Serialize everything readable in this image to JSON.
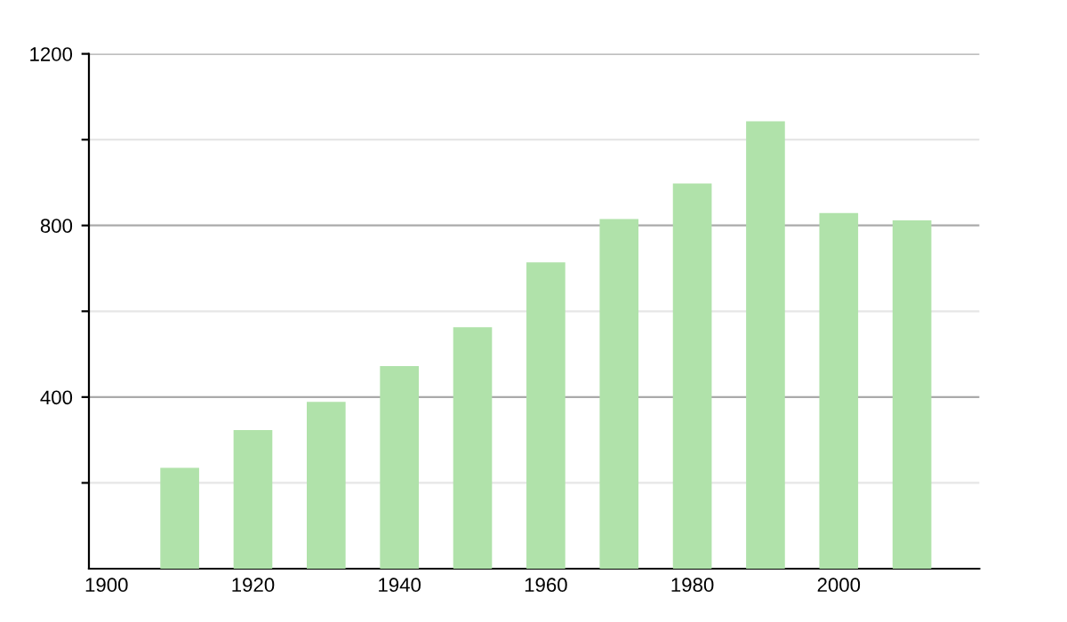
{
  "chart_data": {
    "type": "bar",
    "x": [
      1910,
      1920,
      1930,
      1940,
      1950,
      1960,
      1970,
      1980,
      1990,
      2000,
      2010
    ],
    "values": [
      235,
      323,
      389,
      472,
      563,
      714,
      815,
      898,
      1043,
      829,
      812
    ],
    "color": "#b0e2aa",
    "xlim": [
      1897.6,
      2019.2
    ],
    "xticks": [
      1900,
      1920,
      1940,
      1960,
      1980,
      2000
    ],
    "ylim": [
      0,
      1200
    ],
    "yticks": [
      {
        "value": 200,
        "label": null
      },
      400,
      {
        "value": 600,
        "label": null
      },
      800,
      {
        "value": 1000,
        "label": null
      },
      1200
    ],
    "grid": "y"
  }
}
